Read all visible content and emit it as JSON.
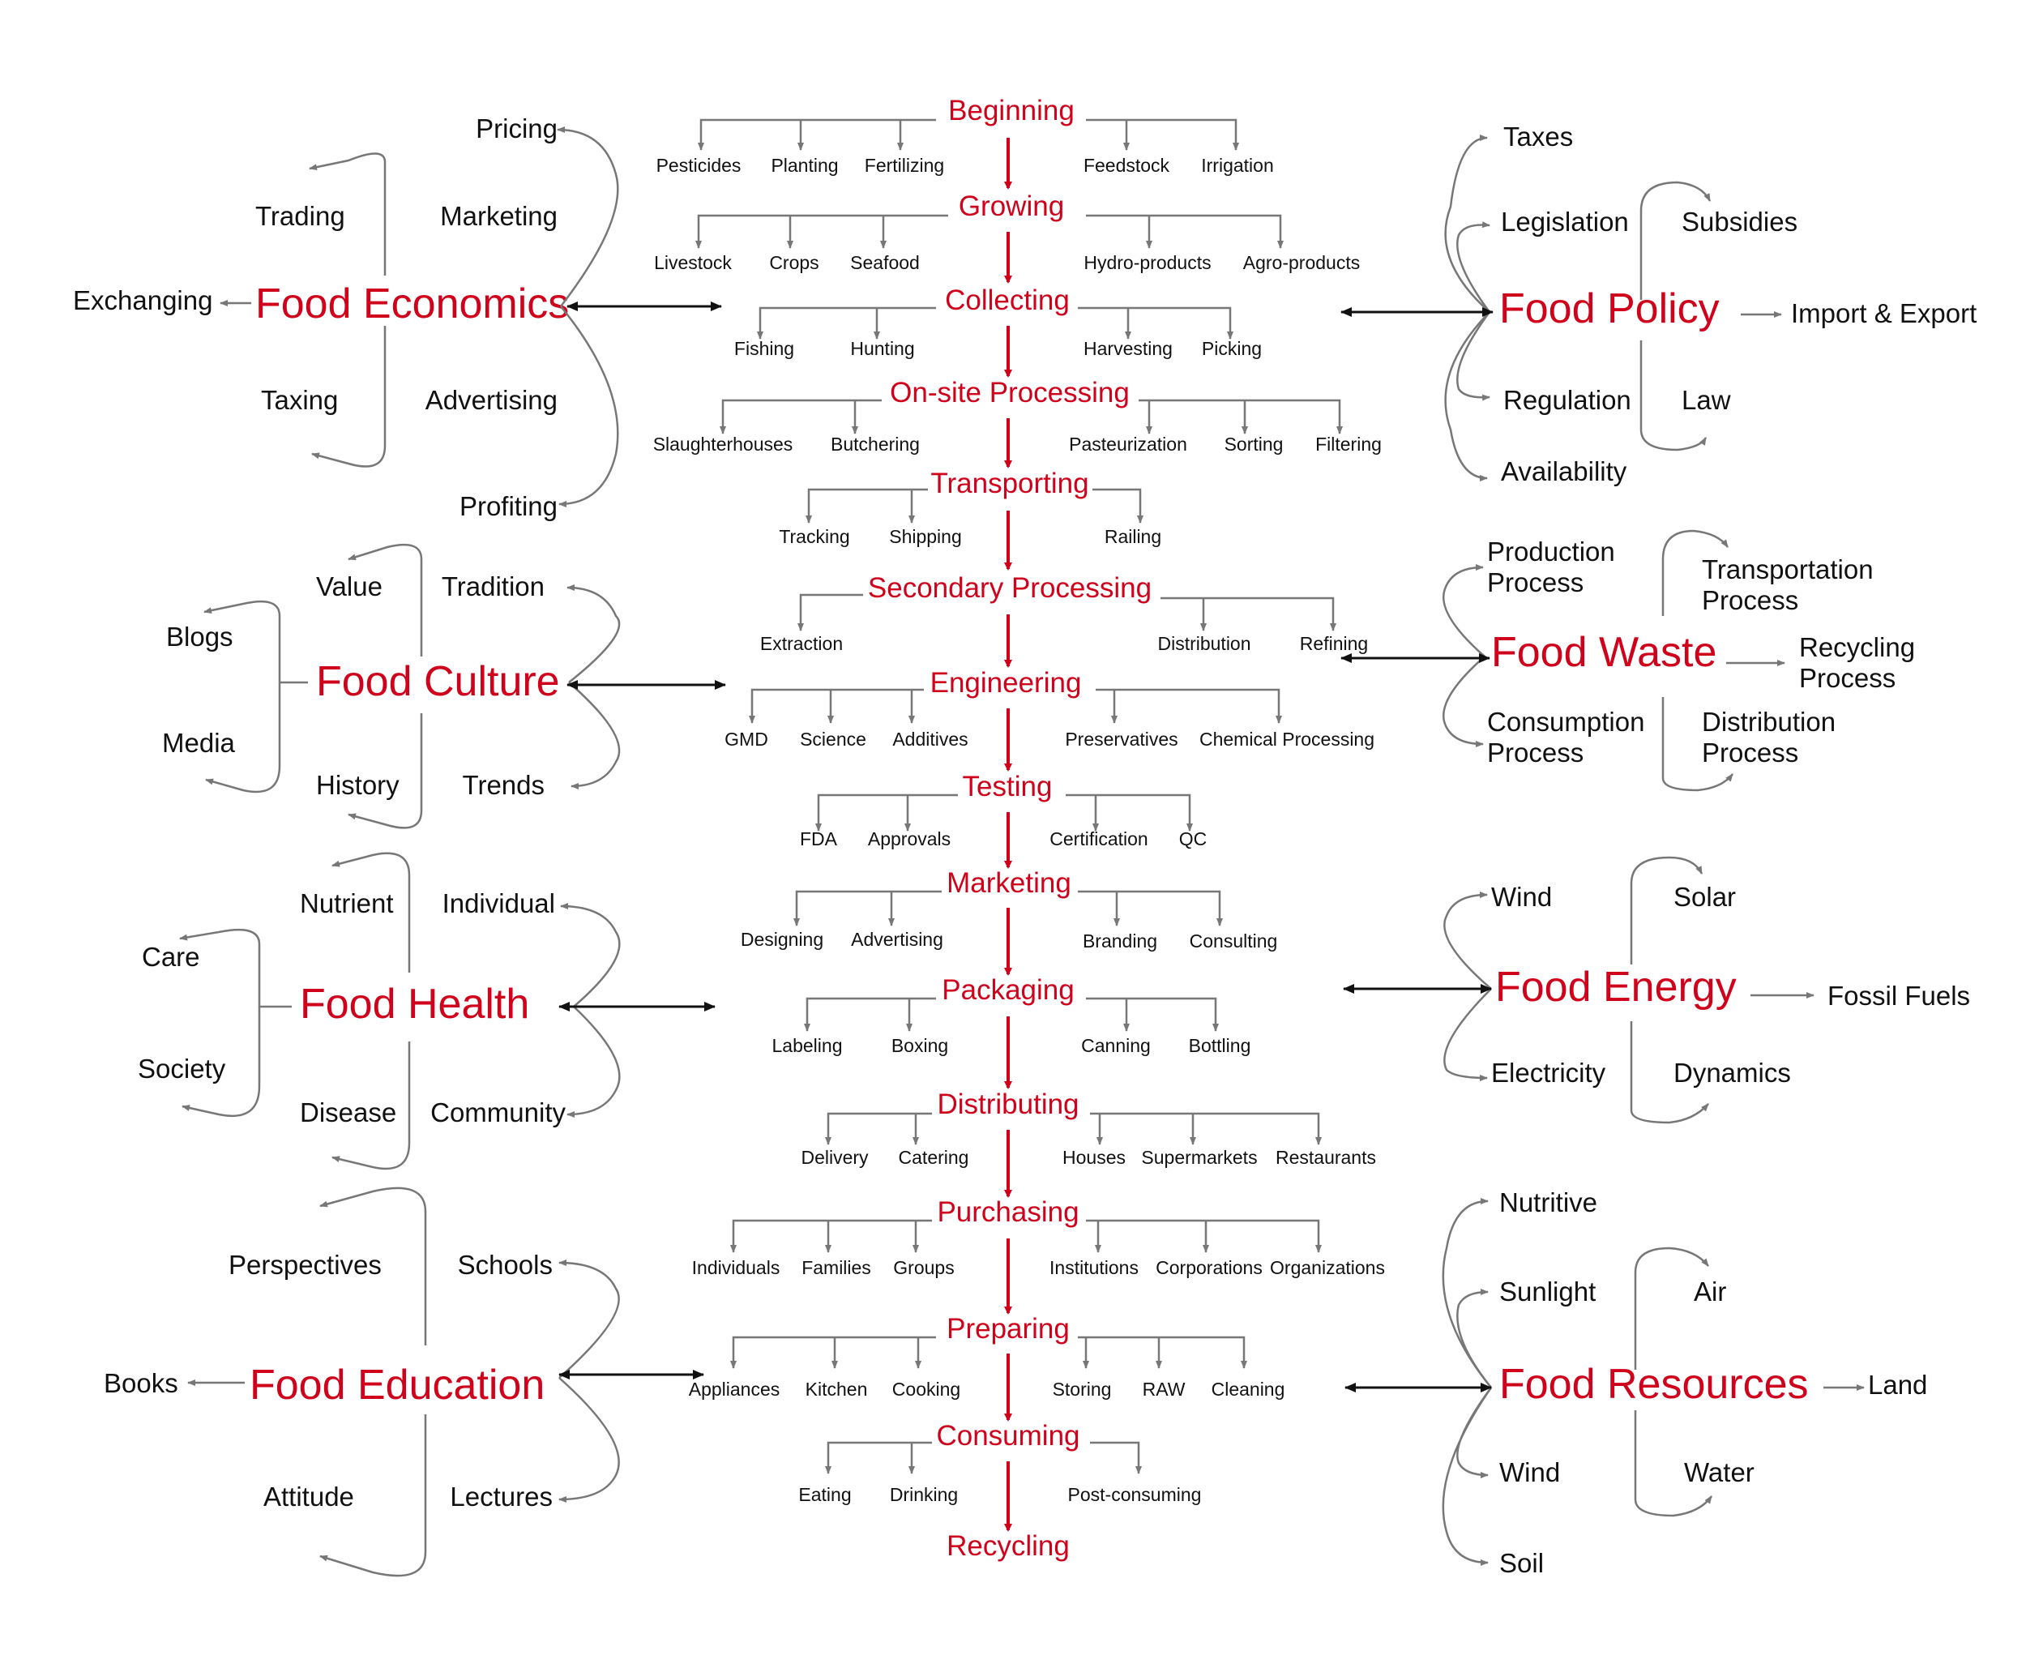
{
  "colors": {
    "accent": "#d0021b",
    "text": "#111111",
    "connector": "#777777",
    "background": "#ffffff"
  },
  "flow": {
    "stages": [
      {
        "label": "Beginning",
        "left": [
          "Pesticides",
          "Planting",
          "Fertilizing"
        ],
        "right": [
          "Feedstock",
          "Irrigation"
        ]
      },
      {
        "label": "Growing",
        "left": [
          "Livestock",
          "Crops",
          "Seafood"
        ],
        "right": [
          "Hydro-products",
          "Agro-products"
        ]
      },
      {
        "label": "Collecting",
        "left": [
          "Fishing",
          "Hunting"
        ],
        "right": [
          "Harvesting",
          "Picking"
        ]
      },
      {
        "label": "On-site Processing",
        "left": [
          "Slaughterhouses",
          "Butchering"
        ],
        "right": [
          "Pasteurization",
          "Sorting",
          "Filtering"
        ]
      },
      {
        "label": "Transporting",
        "left": [
          "Tracking",
          "Shipping"
        ],
        "right": [
          "Railing"
        ]
      },
      {
        "label": "Secondary Processing",
        "left": [
          "Extraction"
        ],
        "right": [
          "Distribution",
          "Refining"
        ]
      },
      {
        "label": "Engineering",
        "left": [
          "GMD",
          "Science",
          "Additives"
        ],
        "right": [
          "Preservatives",
          "Chemical Processing"
        ]
      },
      {
        "label": "Testing",
        "left": [
          "FDA",
          "Approvals"
        ],
        "right": [
          "Certification",
          "QC"
        ]
      },
      {
        "label": "Marketing",
        "left": [
          "Designing",
          "Advertising"
        ],
        "right": [
          "Branding",
          "Consulting"
        ]
      },
      {
        "label": "Packaging",
        "left": [
          "Labeling",
          "Boxing"
        ],
        "right": [
          "Canning",
          "Bottling"
        ]
      },
      {
        "label": "Distributing",
        "left": [
          "Delivery",
          "Catering"
        ],
        "right": [
          "Houses",
          "Supermarkets",
          "Restaurants"
        ]
      },
      {
        "label": "Purchasing",
        "left": [
          "Individuals",
          "Families",
          "Groups"
        ],
        "right": [
          "Institutions",
          "Corporations",
          "Organizations"
        ]
      },
      {
        "label": "Preparing",
        "left": [
          "Appliances",
          "Kitchen",
          "Cooking"
        ],
        "right": [
          "Storing",
          "RAW",
          "Cleaning"
        ]
      },
      {
        "label": "Consuming",
        "left": [
          "Eating",
          "Drinking"
        ],
        "right": [
          "Post-consuming"
        ]
      },
      {
        "label": "Recycling",
        "left": [],
        "right": []
      }
    ]
  },
  "left_clusters": [
    {
      "title": "Food Economics",
      "outer": "Exchanging",
      "inner": [
        "Trading",
        "Taxing"
      ],
      "items": [
        "Pricing",
        "Marketing",
        "Advertising",
        "Profiting"
      ]
    },
    {
      "title": "Food Culture",
      "outer": [
        "Blogs",
        "Media"
      ],
      "inner": [
        "Value",
        "History"
      ],
      "items": [
        "Tradition",
        "Trends"
      ]
    },
    {
      "title": "Food Health",
      "outer": [
        "Care",
        "Society"
      ],
      "inner": [
        "Nutrient",
        "Disease"
      ],
      "items": [
        "Individual",
        "Community"
      ]
    },
    {
      "title": "Food Education",
      "outer": "Books",
      "inner": [
        "Perspectives",
        "Attitude"
      ],
      "items": [
        "Schools",
        "Lectures"
      ]
    }
  ],
  "right_clusters": [
    {
      "title": "Food Policy",
      "items": [
        "Taxes",
        "Legislation",
        "Regulation",
        "Availability"
      ],
      "inner": [
        "Subsidies",
        "Law"
      ],
      "outer": "Import & Export"
    },
    {
      "title": "Food Waste",
      "items": [
        "Production Process",
        "Consumption Process"
      ],
      "inner": [
        "Transportation Process",
        "Distribution Process"
      ],
      "outer": "Recycling Process"
    },
    {
      "title": "Food Energy",
      "items": [
        "Wind",
        "Electricity"
      ],
      "inner": [
        "Solar",
        "Dynamics"
      ],
      "outer": "Fossil Fuels"
    },
    {
      "title": "Food Resources",
      "items": [
        "Nutritive",
        "Sunlight",
        "Wind",
        "Soil"
      ],
      "inner": [
        "Air",
        "Water"
      ],
      "outer": "Land"
    }
  ]
}
